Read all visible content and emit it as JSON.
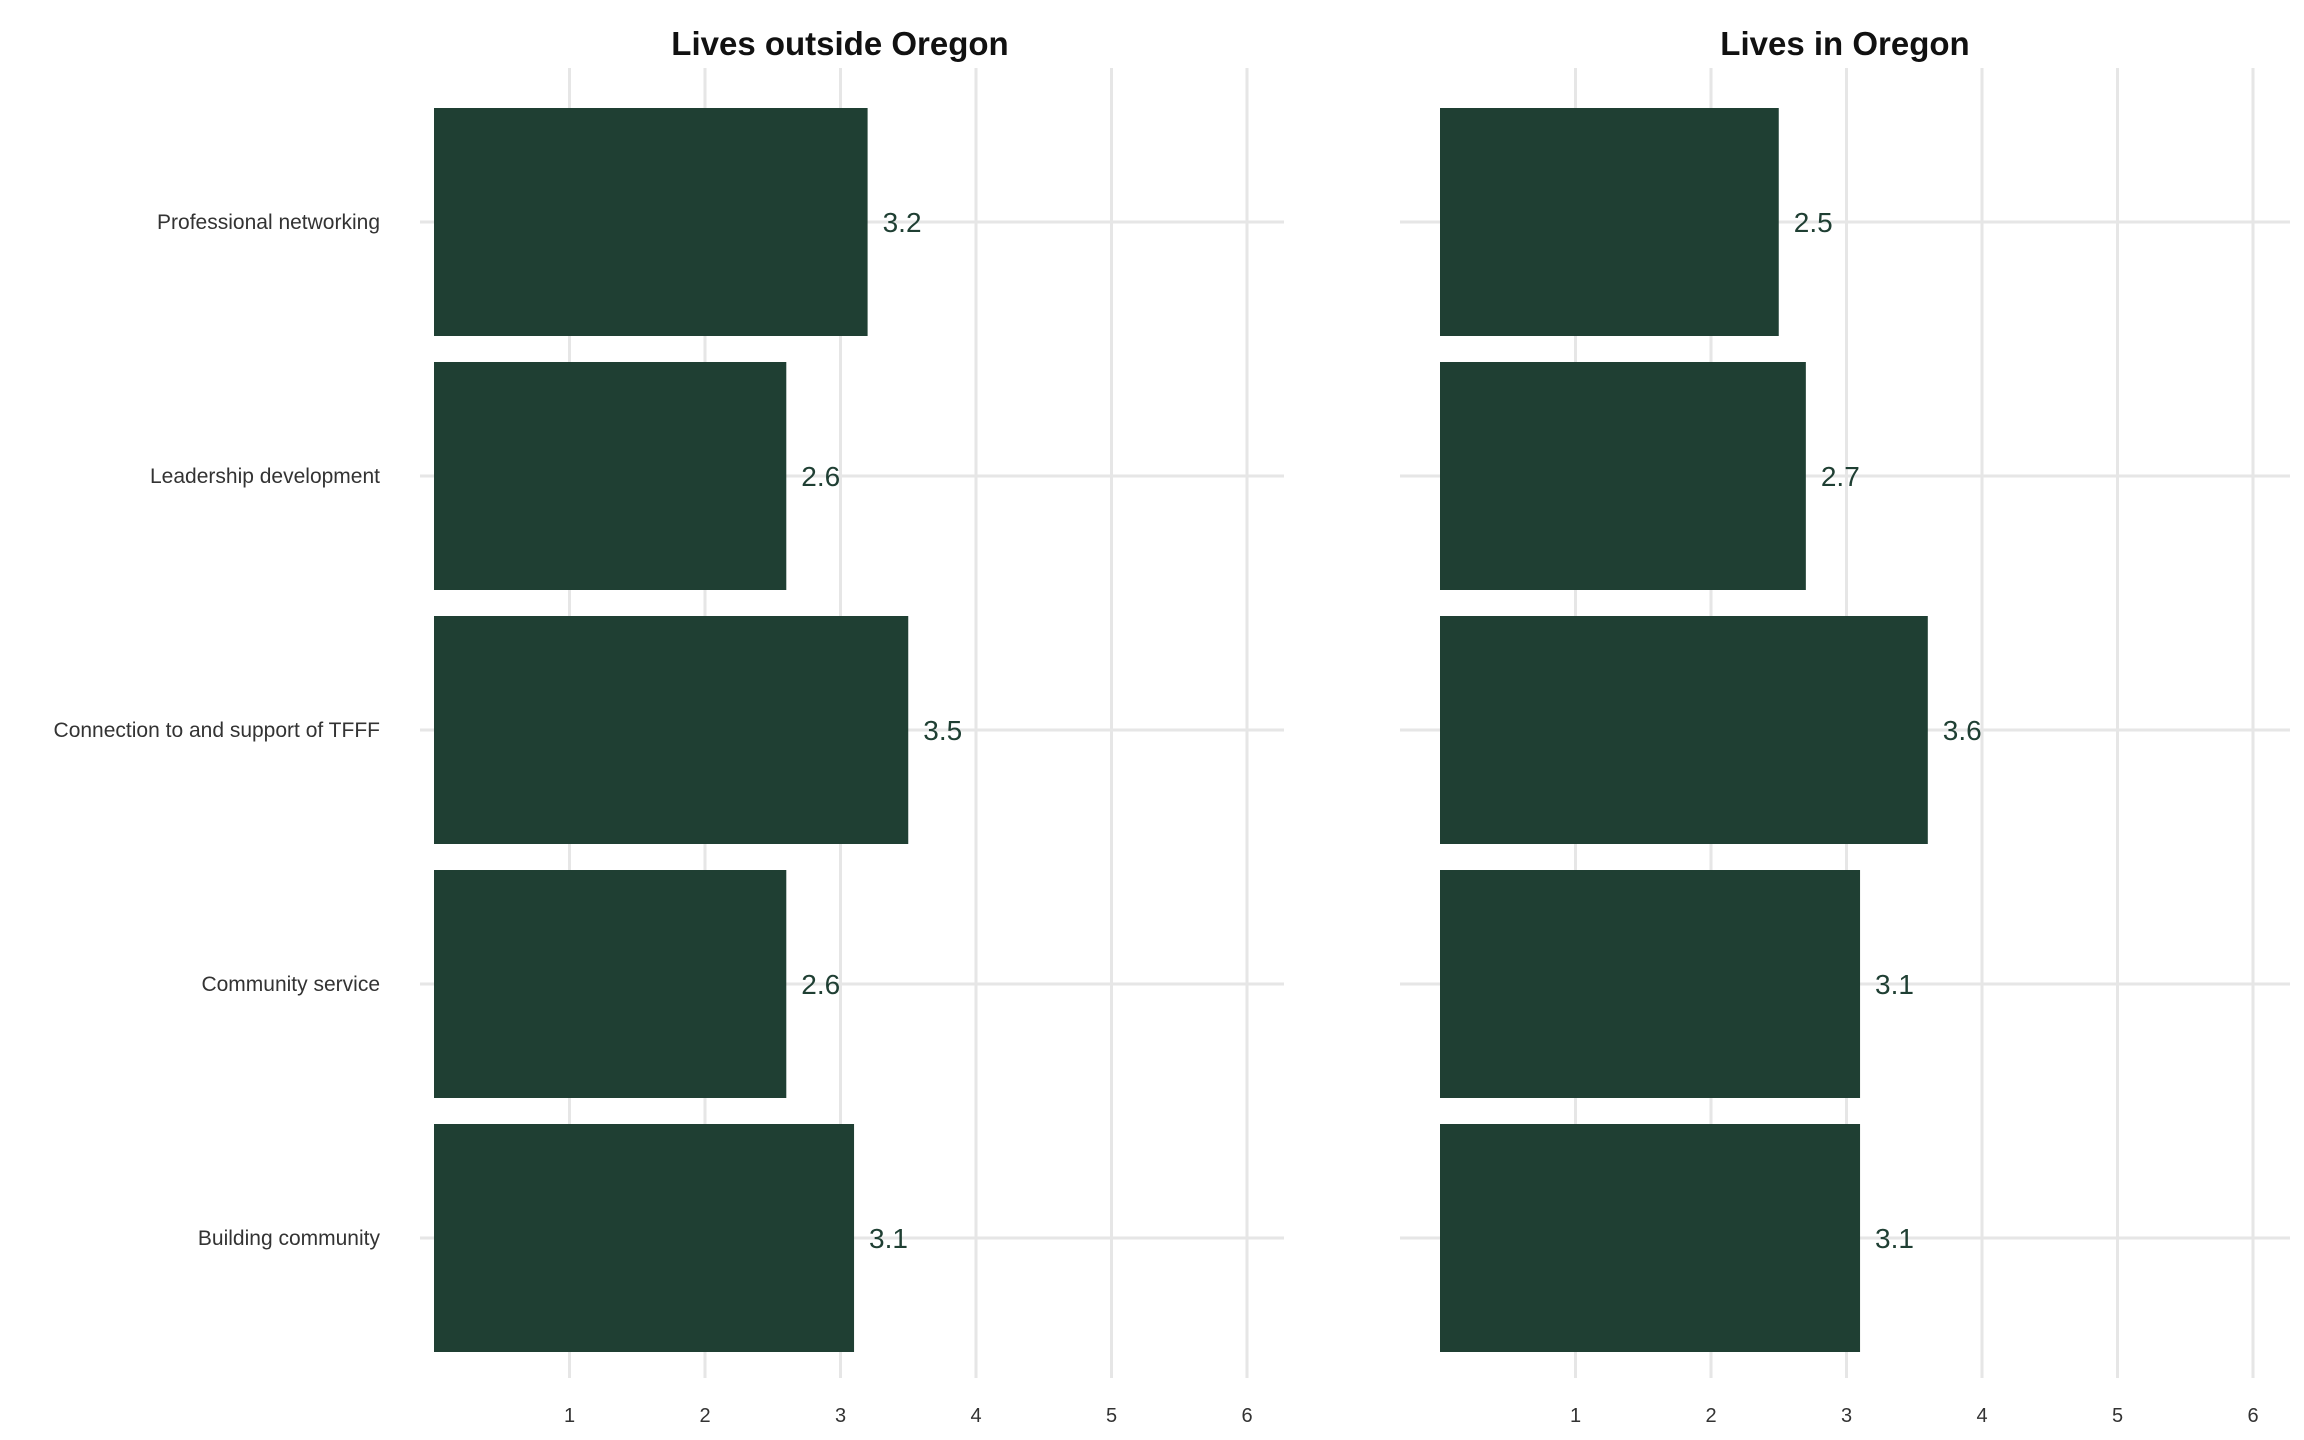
{
  "chart_data": {
    "type": "bar",
    "orientation": "horizontal",
    "categories": [
      "Professional networking",
      "Leadership development",
      "Connection to and support of TFFF",
      "Community service",
      "Building community"
    ],
    "xlim": [
      0,
      6.3
    ],
    "x_ticks": [
      1,
      2,
      3,
      4,
      5,
      6
    ],
    "grid": true,
    "bar_color": "#1f3f33",
    "label_color": "#1f3f33",
    "panels": [
      {
        "title": "Lives outside Oregon",
        "values": [
          3.2,
          2.6,
          3.5,
          2.6,
          3.1
        ],
        "labels": [
          "3.2",
          "2.6",
          "3.5",
          "2.6",
          "3.1"
        ]
      },
      {
        "title": "Lives in Oregon",
        "values": [
          2.5,
          2.7,
          3.6,
          3.1,
          3.1
        ],
        "labels": [
          "2.5",
          "2.7",
          "3.6",
          "3.1",
          "3.1"
        ]
      }
    ]
  }
}
